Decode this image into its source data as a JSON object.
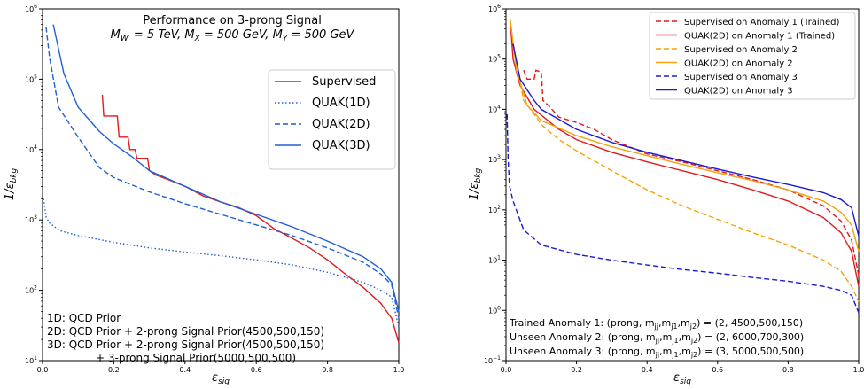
{
  "chart_data": [
    {
      "type": "line",
      "title": "Performance on 3-prong Signal",
      "subtitle": "M_W' = 5 TeV, M_X = 500 GeV, M_Y = 500 GeV",
      "xlabel": "ε_sig",
      "ylabel": "1/ε_bkg",
      "xlim": [
        0,
        1
      ],
      "ylim": [
        10,
        1000000
      ],
      "yscale": "log",
      "x_ticks": [
        "0.0",
        "0.2",
        "0.4",
        "0.6",
        "0.8",
        "1.0"
      ],
      "y_ticks": [
        {
          "base": "10",
          "exp": "1"
        },
        {
          "base": "10",
          "exp": "2"
        },
        {
          "base": "10",
          "exp": "3"
        },
        {
          "base": "10",
          "exp": "4"
        },
        {
          "base": "10",
          "exp": "5"
        },
        {
          "base": "10",
          "exp": "6"
        }
      ],
      "legend_position": "right",
      "series": [
        {
          "name": "Supervised",
          "color": "#e31a1c",
          "dash": "solid",
          "points": [
            [
              0.168,
              60000
            ],
            [
              0.172,
              30000
            ],
            [
              0.21,
              30000
            ],
            [
              0.215,
              15000
            ],
            [
              0.24,
              15000
            ],
            [
              0.245,
              10000
            ],
            [
              0.26,
              10000
            ],
            [
              0.265,
              7500
            ],
            [
              0.295,
              7500
            ],
            [
              0.3,
              5000
            ],
            [
              0.32,
              4300
            ],
            [
              0.35,
              3800
            ],
            [
              0.4,
              3000
            ],
            [
              0.45,
              2200
            ],
            [
              0.5,
              1800
            ],
            [
              0.55,
              1500
            ],
            [
              0.6,
              1150
            ],
            [
              0.65,
              750
            ],
            [
              0.7,
              550
            ],
            [
              0.75,
              400
            ],
            [
              0.8,
              270
            ],
            [
              0.85,
              170
            ],
            [
              0.9,
              110
            ],
            [
              0.95,
              65
            ],
            [
              0.98,
              40
            ],
            [
              1.0,
              18
            ]
          ]
        },
        {
          "name": "QUAK(1D)",
          "color": "#1f5fd6",
          "dash": "dot",
          "points": [
            [
              0.003,
              2000
            ],
            [
              0.01,
              1100
            ],
            [
              0.02,
              900
            ],
            [
              0.05,
              700
            ],
            [
              0.1,
              600
            ],
            [
              0.2,
              480
            ],
            [
              0.3,
              400
            ],
            [
              0.4,
              350
            ],
            [
              0.5,
              310
            ],
            [
              0.6,
              270
            ],
            [
              0.7,
              230
            ],
            [
              0.8,
              180
            ],
            [
              0.9,
              130
            ],
            [
              0.95,
              100
            ],
            [
              0.98,
              80
            ],
            [
              1.0,
              30
            ]
          ]
        },
        {
          "name": "QUAK(2D)",
          "color": "#1f5fd6",
          "dash": "dash",
          "points": [
            [
              0.01,
              550000
            ],
            [
              0.02,
              200000
            ],
            [
              0.045,
              40000
            ],
            [
              0.1,
              15000
            ],
            [
              0.16,
              5500
            ],
            [
              0.2,
              4000
            ],
            [
              0.3,
              2500
            ],
            [
              0.4,
              1700
            ],
            [
              0.5,
              1200
            ],
            [
              0.6,
              850
            ],
            [
              0.7,
              600
            ],
            [
              0.8,
              400
            ],
            [
              0.9,
              250
            ],
            [
              0.95,
              170
            ],
            [
              0.98,
              120
            ],
            [
              1.0,
              40
            ]
          ]
        },
        {
          "name": "QUAK(3D)",
          "color": "#1f5fd6",
          "dash": "solid",
          "points": [
            [
              0.03,
              600000
            ],
            [
              0.06,
              120000
            ],
            [
              0.1,
              40000
            ],
            [
              0.16,
              18000
            ],
            [
              0.2,
              12000
            ],
            [
              0.25,
              8000
            ],
            [
              0.3,
              5000
            ],
            [
              0.4,
              3000
            ],
            [
              0.5,
              1800
            ],
            [
              0.6,
              1200
            ],
            [
              0.7,
              800
            ],
            [
              0.8,
              500
            ],
            [
              0.9,
              300
            ],
            [
              0.95,
              200
            ],
            [
              0.98,
              130
            ],
            [
              1.0,
              50
            ]
          ]
        }
      ],
      "annotations": [
        "1D: QCD Prior",
        "2D: QCD Prior + 2-prong Signal Prior(4500,500,150)",
        "3D: QCD Prior + 2-prong Signal Prior(4500,500,150)",
        "+ 3-prong Signal Prior(5000,500,500)"
      ]
    },
    {
      "type": "line",
      "xlabel": "ε_sig",
      "ylabel": "1/ε_bkg",
      "xlim": [
        0,
        1
      ],
      "ylim": [
        0.1,
        1000000
      ],
      "yscale": "log",
      "x_ticks": [
        "0.0",
        "0.2",
        "0.4",
        "0.6",
        "0.8",
        "1.0"
      ],
      "y_ticks": [
        {
          "base": "10",
          "exp": "−1"
        },
        {
          "base": "10",
          "exp": "0"
        },
        {
          "base": "10",
          "exp": "1"
        },
        {
          "base": "10",
          "exp": "2"
        },
        {
          "base": "10",
          "exp": "3"
        },
        {
          "base": "10",
          "exp": "4"
        },
        {
          "base": "10",
          "exp": "5"
        },
        {
          "base": "10",
          "exp": "6"
        }
      ],
      "legend_position": "top-right",
      "series": [
        {
          "name": "Supervised on Anomaly 1 (Trained)",
          "color": "#e31a1c",
          "dash": "dash",
          "points": [
            [
              0.05,
              60000
            ],
            [
              0.06,
              40000
            ],
            [
              0.08,
              40000
            ],
            [
              0.085,
              60000
            ],
            [
              0.1,
              55000
            ],
            [
              0.105,
              15000
            ],
            [
              0.12,
              12000
            ],
            [
              0.15,
              7000
            ],
            [
              0.2,
              5500
            ],
            [
              0.25,
              4000
            ],
            [
              0.3,
              2500
            ],
            [
              0.35,
              1800
            ],
            [
              0.4,
              1300
            ],
            [
              0.5,
              900
            ],
            [
              0.6,
              600
            ],
            [
              0.7,
              400
            ],
            [
              0.8,
              250
            ],
            [
              0.9,
              120
            ],
            [
              0.95,
              60
            ],
            [
              0.98,
              25
            ],
            [
              1.0,
              5
            ]
          ]
        },
        {
          "name": "QUAK(2D)   on Anomaly 1 (Trained)",
          "color": "#e31a1c",
          "dash": "solid",
          "points": [
            [
              0.012,
              600000
            ],
            [
              0.02,
              100000
            ],
            [
              0.04,
              30000
            ],
            [
              0.08,
              10000
            ],
            [
              0.15,
              4000
            ],
            [
              0.2,
              2500
            ],
            [
              0.3,
              1400
            ],
            [
              0.4,
              900
            ],
            [
              0.5,
              600
            ],
            [
              0.6,
              400
            ],
            [
              0.7,
              250
            ],
            [
              0.8,
              150
            ],
            [
              0.9,
              70
            ],
            [
              0.95,
              35
            ],
            [
              0.98,
              15
            ],
            [
              1.0,
              3
            ]
          ]
        },
        {
          "name": "Supervised on Anomaly 2",
          "color": "#f5a30a",
          "dash": "dash",
          "points": [
            [
              0.02,
              200000
            ],
            [
              0.05,
              15000
            ],
            [
              0.08,
              8000
            ],
            [
              0.1,
              5000
            ],
            [
              0.15,
              2500
            ],
            [
              0.2,
              1500
            ],
            [
              0.3,
              600
            ],
            [
              0.4,
              250
            ],
            [
              0.5,
              120
            ],
            [
              0.6,
              65
            ],
            [
              0.7,
              35
            ],
            [
              0.8,
              20
            ],
            [
              0.9,
              10
            ],
            [
              0.95,
              6
            ],
            [
              0.98,
              3
            ],
            [
              1.0,
              1.5
            ]
          ]
        },
        {
          "name": "QUAK(2D)   on Anomaly 2",
          "color": "#f5a30a",
          "dash": "solid",
          "points": [
            [
              0.012,
              600000
            ],
            [
              0.03,
              60000
            ],
            [
              0.06,
              12000
            ],
            [
              0.1,
              6000
            ],
            [
              0.2,
              3000
            ],
            [
              0.3,
              1800
            ],
            [
              0.4,
              1200
            ],
            [
              0.5,
              800
            ],
            [
              0.6,
              550
            ],
            [
              0.7,
              380
            ],
            [
              0.8,
              250
            ],
            [
              0.9,
              150
            ],
            [
              0.95,
              90
            ],
            [
              0.98,
              50
            ],
            [
              1.0,
              15
            ]
          ]
        },
        {
          "name": "Supervised on Anomaly 3",
          "color": "#1a1ad6",
          "dash": "dash",
          "points": [
            [
              0.003,
              8000
            ],
            [
              0.006,
              1000
            ],
            [
              0.01,
              300
            ],
            [
              0.02,
              150
            ],
            [
              0.05,
              40
            ],
            [
              0.1,
              20
            ],
            [
              0.2,
              13
            ],
            [
              0.3,
              10
            ],
            [
              0.4,
              8
            ],
            [
              0.5,
              6.5
            ],
            [
              0.6,
              5.5
            ],
            [
              0.7,
              4.5
            ],
            [
              0.8,
              3.8
            ],
            [
              0.9,
              3
            ],
            [
              0.95,
              2.5
            ],
            [
              0.98,
              2
            ],
            [
              1.0,
              0.9
            ]
          ]
        },
        {
          "name": "QUAK(2D)   on Anomaly 3",
          "color": "#1a1ad6",
          "dash": "solid",
          "points": [
            [
              0.02,
              200000
            ],
            [
              0.04,
              40000
            ],
            [
              0.08,
              15000
            ],
            [
              0.1,
              10000
            ],
            [
              0.2,
              4000
            ],
            [
              0.3,
              2200
            ],
            [
              0.4,
              1400
            ],
            [
              0.5,
              950
            ],
            [
              0.6,
              650
            ],
            [
              0.7,
              450
            ],
            [
              0.8,
              320
            ],
            [
              0.9,
              220
            ],
            [
              0.95,
              160
            ],
            [
              0.98,
              110
            ],
            [
              1.0,
              30
            ]
          ]
        }
      ],
      "annotations": [
        "Trained Anomaly 1: (prong, m_jj, m_j1, m_j2) = (2, 4500,500,150)",
        "Unseen Anomaly 2: (prong, m_jj, m_j1, m_j2) = (2, 6000,700,300)",
        "Unseen Anomaly 3: (prong, m_jj, m_j1, m_j2) = (3, 5000,500,500)"
      ]
    }
  ]
}
